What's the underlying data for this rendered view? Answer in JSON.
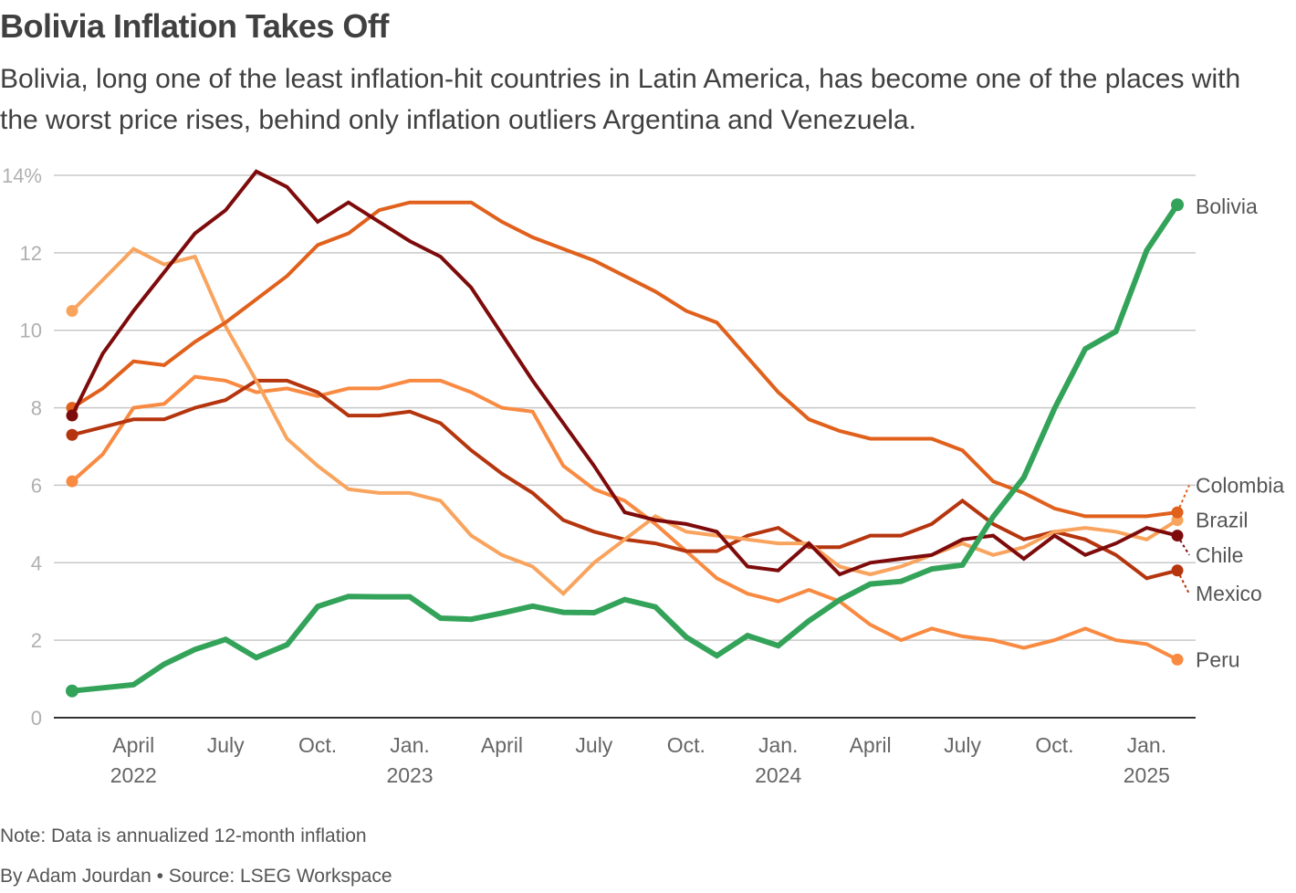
{
  "header": {
    "title": "Bolivia Inflation Takes Off",
    "subtitle": "Bolivia, long one of the least inflation-hit countries in Latin America, has become one of the places with the worst price rises, behind only inflation outliers Argentina and Venezuela."
  },
  "footer": {
    "note": "Note: Data is annualized 12-month inflation",
    "byline": "By Adam Jourdan • Source: LSEG Workspace"
  },
  "chart_data": {
    "type": "line",
    "title": "Bolivia Inflation Takes Off",
    "xlabel": "",
    "ylabel": "",
    "y_unit": "%",
    "ylim": [
      0,
      14
    ],
    "yticks": [
      0,
      2,
      4,
      6,
      8,
      10,
      12,
      14
    ],
    "ytick_labels": [
      "0",
      "2",
      "4",
      "6",
      "8",
      "10",
      "12",
      "14%"
    ],
    "grid": true,
    "legend": "direct labels at right end of lines",
    "x_start": "2022-02",
    "x": [
      "2022-02",
      "2022-03",
      "2022-04",
      "2022-05",
      "2022-06",
      "2022-07",
      "2022-08",
      "2022-09",
      "2022-10",
      "2022-11",
      "2022-12",
      "2023-01",
      "2023-02",
      "2023-03",
      "2023-04",
      "2023-05",
      "2023-06",
      "2023-07",
      "2023-08",
      "2023-09",
      "2023-10",
      "2023-11",
      "2023-12",
      "2024-01",
      "2024-02",
      "2024-03",
      "2024-04",
      "2024-05",
      "2024-06",
      "2024-07",
      "2024-08",
      "2024-09",
      "2024-10",
      "2024-11",
      "2024-12",
      "2025-01",
      "2025-02"
    ],
    "xticks": [
      {
        "index": 2,
        "label": "April",
        "year": "2022"
      },
      {
        "index": 5,
        "label": "July",
        "year": ""
      },
      {
        "index": 8,
        "label": "Oct.",
        "year": ""
      },
      {
        "index": 11,
        "label": "Jan.",
        "year": "2023"
      },
      {
        "index": 14,
        "label": "April",
        "year": ""
      },
      {
        "index": 17,
        "label": "July",
        "year": ""
      },
      {
        "index": 20,
        "label": "Oct.",
        "year": ""
      },
      {
        "index": 23,
        "label": "Jan.",
        "year": "2024"
      },
      {
        "index": 26,
        "label": "April",
        "year": ""
      },
      {
        "index": 29,
        "label": "July",
        "year": ""
      },
      {
        "index": 32,
        "label": "Oct.",
        "year": ""
      },
      {
        "index": 35,
        "label": "Jan.",
        "year": "2025"
      }
    ],
    "series": [
      {
        "name": "Peru",
        "color": "#f98a42",
        "width": 4,
        "label_value": 1.5,
        "values": [
          6.1,
          6.8,
          8.0,
          8.1,
          8.8,
          8.7,
          8.4,
          8.5,
          8.3,
          8.5,
          8.5,
          8.7,
          8.7,
          8.4,
          8.0,
          7.9,
          6.5,
          5.9,
          5.6,
          5.0,
          4.3,
          3.6,
          3.2,
          3.0,
          3.3,
          3.0,
          2.4,
          2.0,
          2.3,
          2.1,
          2.0,
          1.8,
          2.0,
          2.3,
          2.0,
          1.9,
          1.5
        ]
      },
      {
        "name": "Mexico",
        "color": "#b5350e",
        "width": 4,
        "label_value": 3.2,
        "values": [
          7.3,
          7.5,
          7.7,
          7.7,
          8.0,
          8.2,
          8.7,
          8.7,
          8.4,
          7.8,
          7.8,
          7.9,
          7.6,
          6.9,
          6.3,
          5.8,
          5.1,
          4.8,
          4.6,
          4.5,
          4.3,
          4.3,
          4.7,
          4.9,
          4.4,
          4.4,
          4.7,
          4.7,
          5.0,
          5.6,
          5.0,
          4.6,
          4.8,
          4.6,
          4.2,
          3.6,
          3.8
        ]
      },
      {
        "name": "Brazil",
        "color": "#f9a45e",
        "width": 4,
        "label_value": 5.1,
        "values": [
          10.5,
          11.3,
          12.1,
          11.7,
          11.9,
          10.1,
          8.7,
          7.2,
          6.5,
          5.9,
          5.8,
          5.8,
          5.6,
          4.7,
          4.2,
          3.9,
          3.2,
          4.0,
          4.6,
          5.2,
          4.8,
          4.7,
          4.6,
          4.5,
          4.5,
          3.9,
          3.7,
          3.9,
          4.2,
          4.5,
          4.2,
          4.4,
          4.8,
          4.9,
          4.8,
          4.6,
          5.1
        ]
      },
      {
        "name": "Colombia",
        "color": "#e0601c",
        "width": 4,
        "label_value": 6.0,
        "values": [
          8.0,
          8.5,
          9.2,
          9.1,
          9.7,
          10.2,
          10.8,
          11.4,
          12.2,
          12.5,
          13.1,
          13.3,
          13.3,
          13.3,
          12.8,
          12.4,
          12.1,
          11.8,
          11.4,
          11.0,
          10.5,
          10.2,
          9.3,
          8.4,
          7.7,
          7.4,
          7.2,
          7.2,
          7.2,
          6.9,
          6.1,
          5.8,
          5.4,
          5.2,
          5.2,
          5.2,
          5.3
        ]
      },
      {
        "name": "Chile",
        "color": "#7e0b0b",
        "width": 4,
        "label_value": 4.2,
        "values": [
          7.8,
          9.4,
          10.5,
          11.5,
          12.5,
          13.1,
          14.1,
          13.7,
          12.8,
          13.3,
          12.8,
          12.3,
          11.9,
          11.1,
          9.9,
          8.7,
          7.6,
          6.5,
          5.3,
          5.1,
          5.0,
          4.8,
          3.9,
          3.8,
          4.5,
          3.7,
          4.0,
          4.1,
          4.2,
          4.6,
          4.7,
          4.1,
          4.7,
          4.2,
          4.5,
          4.9,
          4.7
        ]
      },
      {
        "name": "Bolivia",
        "color": "#34a35a",
        "width": 6,
        "label_value": 13.2,
        "values": [
          0.69,
          0.77,
          0.85,
          1.38,
          1.76,
          2.02,
          1.55,
          1.88,
          2.87,
          3.13,
          3.12,
          3.12,
          2.57,
          2.54,
          2.7,
          2.88,
          2.72,
          2.71,
          3.05,
          2.86,
          2.08,
          1.6,
          2.12,
          1.86,
          2.5,
          3.04,
          3.45,
          3.52,
          3.84,
          3.94,
          5.19,
          6.2,
          7.98,
          9.52,
          9.97,
          12.06,
          13.24
        ]
      }
    ]
  }
}
